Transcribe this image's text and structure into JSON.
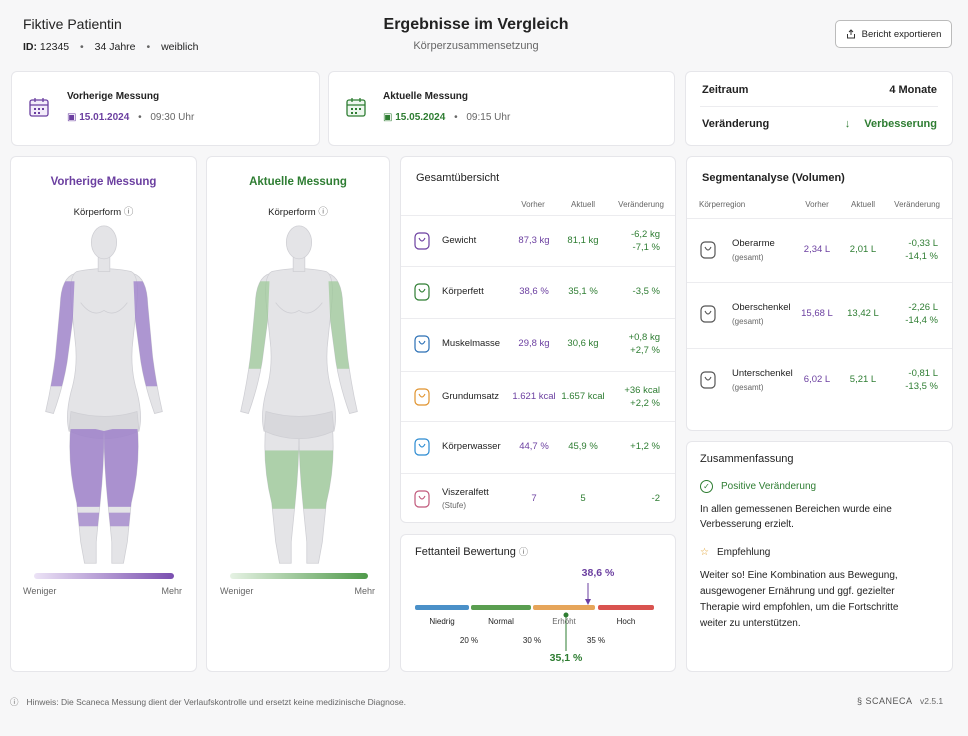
{
  "header": {
    "patient_name": "Fiktive Patientin",
    "id_label": "ID:",
    "id": "12345",
    "age": "34 Jahre",
    "sex": "weiblich",
    "title": "Ergebnisse im Vergleich",
    "subtitle": "Körperzusammensetzung",
    "export_button": "Bericht exportieren"
  },
  "measurements": {
    "previous": {
      "label": "Vorherige Messung",
      "date": "15.01.2024",
      "time": "09:30 Uhr"
    },
    "current": {
      "label": "Aktuelle Messung",
      "date": "15.05.2024",
      "time": "09:15 Uhr"
    }
  },
  "period": {
    "label": "Zeitraum",
    "value": "4 Monate",
    "change_label": "Veränderung",
    "change_value": "Verbesserung"
  },
  "body_panels": {
    "previous": {
      "title": "Vorherige Messung",
      "subtitle": "Körperform",
      "legend_low": "Weniger",
      "legend_high": "Mehr"
    },
    "current": {
      "title": "Aktuelle Messung",
      "subtitle": "Körperform",
      "legend_low": "Weniger",
      "legend_high": "Mehr"
    }
  },
  "overview": {
    "title": "Gesamtübersicht",
    "columns": [
      "Vorher",
      "Aktuell",
      "Veränderung"
    ],
    "rows": [
      {
        "name": "Gewicht",
        "before": "87,3 kg",
        "current": "81,1 kg",
        "change": [
          "-6,2 kg",
          "-7,1 %"
        ]
      },
      {
        "name": "Körperfett",
        "before": "38,6 %",
        "current": "35,1 %",
        "change": [
          "-3,5 %"
        ]
      },
      {
        "name": "Muskelmasse",
        "before": "29,8 kg",
        "current": "30,6 kg",
        "change": [
          "+0,8 kg",
          "+2,7 %"
        ]
      },
      {
        "name": "Grundumsatz",
        "before": "1.621 kcal",
        "current": "1.657 kcal",
        "change": [
          "+36 kcal",
          "+2,2 %"
        ]
      },
      {
        "name": "Körperwasser",
        "before": "44,7 %",
        "current": "45,9 %",
        "change": [
          "+1,2 %"
        ]
      },
      {
        "name": "Viszeralfett",
        "sub": "(Stufe)",
        "before": "7",
        "current": "5",
        "change": [
          "-2"
        ]
      }
    ]
  },
  "fat_rating": {
    "title": "Fettanteil Bewertung",
    "zones": [
      "Niedrig",
      "Normal",
      "Erhöht",
      "Hoch"
    ],
    "thresholds": [
      "20 %",
      "30 %",
      "35 %"
    ],
    "previous_marker": "38,6 %",
    "current_marker": "35,1 %"
  },
  "segments": {
    "title": "Segmentanalyse (Volumen)",
    "columns": [
      "Körperregion",
      "Vorher",
      "Aktuell",
      "Veränderung"
    ],
    "rows": [
      {
        "name": "Oberarme",
        "sub": "(gesamt)",
        "before": "2,34 L",
        "current": "2,01 L",
        "change": [
          "-0,33 L",
          "-14,1 %"
        ]
      },
      {
        "name": "Oberschenkel",
        "sub": "(gesamt)",
        "before": "15,68 L",
        "current": "13,42 L",
        "change": [
          "-2,26 L",
          "-14,4 %"
        ]
      },
      {
        "name": "Unterschenkel",
        "sub": "(gesamt)",
        "before": "6,02 L",
        "current": "5,21 L",
        "change": [
          "-0,81 L",
          "-13,5 %"
        ]
      }
    ]
  },
  "summary": {
    "title": "Zusammenfassung",
    "positive_title": "Positive Veränderung",
    "positive_text": "In allen gemessenen Bereichen wurde eine Verbesserung erzielt.",
    "recommendation_title": "Empfehlung",
    "recommendation_text": "Weiter so! Eine Kombination aus Bewegung, ausgewogener Ernährung und ggf. gezielter Therapie wird empfohlen, um die Fortschritte weiter zu unterstützen."
  },
  "footer": {
    "note_label": "Hinweis:",
    "note": "Die Scaneca Messung dient der Verlaufskontrolle und ersetzt keine medizinische Diagnose.",
    "brand": "SCANECA",
    "version": "v2.5.1"
  }
}
